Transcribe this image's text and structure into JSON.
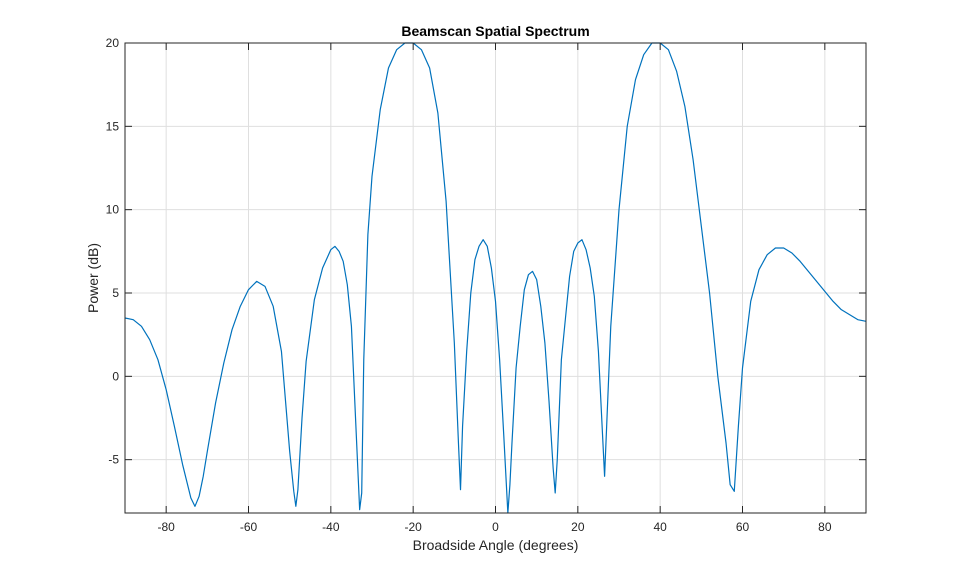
{
  "chart_data": {
    "type": "line",
    "title": "Beamscan Spatial Spectrum",
    "xlabel": "Broadside Angle (degrees)",
    "ylabel": "Power (dB)",
    "xlim": [
      -90,
      90
    ],
    "ylim": [
      -8.2,
      20
    ],
    "grid": true,
    "x_ticks": [
      -80,
      -60,
      -40,
      -20,
      0,
      20,
      40,
      60,
      80
    ],
    "x_tick_labels": [
      "-80",
      "-60",
      "-40",
      "-20",
      "0",
      "20",
      "40",
      "60",
      "80"
    ],
    "y_ticks": [
      -5,
      0,
      5,
      10,
      15,
      20
    ],
    "y_tick_labels": [
      "-5",
      "0",
      "5",
      "10",
      "15",
      "20"
    ],
    "colors": {
      "line": "#0072BD",
      "grid": "#dfdfdf",
      "axis": "#262626"
    },
    "series": [
      {
        "x": [
          -90,
          -88,
          -86,
          -84,
          -82,
          -80,
          -78,
          -76,
          -74,
          -73,
          -72,
          -71,
          -70,
          -68,
          -66,
          -64,
          -62,
          -60,
          -58,
          -56,
          -54,
          -52,
          -51,
          -50,
          -49,
          -48.5,
          -48,
          -47,
          -46,
          -44,
          -42,
          -40,
          -39,
          -38,
          -37,
          -36,
          -35,
          -34,
          -33,
          -32.5,
          -32,
          -31,
          -30,
          -28,
          -26,
          -24,
          -22,
          -20,
          -18,
          -16,
          -14,
          -12,
          -10,
          -9,
          -8.5,
          -8,
          -7,
          -6,
          -5,
          -4,
          -3,
          -2,
          -1,
          0,
          1,
          2,
          3,
          3.5,
          4,
          5,
          6,
          7,
          8,
          9,
          10,
          11,
          12,
          13,
          14,
          14.5,
          15,
          16,
          17,
          18,
          19,
          20,
          21,
          22,
          23,
          24,
          25,
          26,
          26.5,
          27,
          28,
          30,
          32,
          34,
          36,
          38,
          40,
          42,
          44,
          46,
          48,
          50,
          52,
          54,
          56,
          57,
          58,
          59,
          60,
          62,
          64,
          66,
          68,
          70,
          72,
          74,
          76,
          78,
          80,
          82,
          84,
          86,
          88,
          90
        ],
        "y": [
          3.5,
          3.4,
          3.0,
          2.2,
          1.0,
          -0.8,
          -3.0,
          -5.3,
          -7.3,
          -7.8,
          -7.2,
          -6.0,
          -4.5,
          -1.6,
          0.8,
          2.8,
          4.2,
          5.2,
          5.7,
          5.4,
          4.2,
          1.5,
          -1.5,
          -4.5,
          -6.9,
          -7.8,
          -6.8,
          -2.5,
          0.9,
          4.6,
          6.5,
          7.6,
          7.8,
          7.5,
          6.9,
          5.5,
          3.0,
          -2.5,
          -8.0,
          -7.0,
          1.0,
          8.5,
          12.0,
          16.0,
          18.5,
          19.6,
          20.0,
          20.0,
          19.6,
          18.5,
          15.8,
          10.5,
          2.0,
          -4.0,
          -6.8,
          -3.0,
          1.5,
          5.0,
          7.0,
          7.8,
          8.2,
          7.8,
          6.5,
          4.5,
          1.0,
          -3.5,
          -8.2,
          -6.5,
          -4.0,
          0.5,
          3.0,
          5.2,
          6.1,
          6.3,
          5.8,
          4.2,
          2.0,
          -1.5,
          -5.5,
          -7.0,
          -5.0,
          1.0,
          3.5,
          6.0,
          7.5,
          8.0,
          8.2,
          7.6,
          6.5,
          4.8,
          1.5,
          -3.5,
          -6.0,
          -3.0,
          3.0,
          10.0,
          15.0,
          17.8,
          19.3,
          20.0,
          20.0,
          19.6,
          18.3,
          16.2,
          13.0,
          9.0,
          5.0,
          0.0,
          -4.0,
          -6.5,
          -6.9,
          -3.0,
          0.5,
          4.5,
          6.4,
          7.3,
          7.7,
          7.7,
          7.4,
          6.9,
          6.3,
          5.7,
          5.1,
          4.5,
          4.0,
          3.7,
          3.4,
          3.3
        ]
      }
    ]
  }
}
